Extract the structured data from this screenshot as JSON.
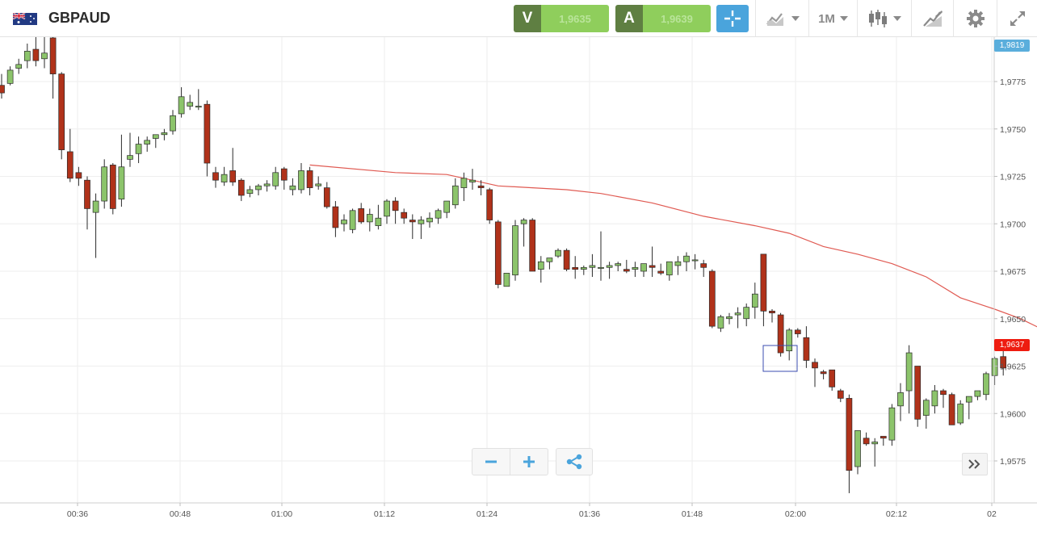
{
  "toolbar": {
    "symbol": "GBPAUD",
    "flag_icon": "gb-au-flag-icon",
    "sell": {
      "letter": "V",
      "price": "1,9635"
    },
    "buy": {
      "letter": "A",
      "price": "1,9639"
    },
    "timeframe": "1M",
    "icons": [
      "crosshair-icon",
      "chart-type-icon",
      "candlestick-icon",
      "drawing-icon",
      "gear-icon",
      "fullscreen-icon"
    ]
  },
  "chart": {
    "price_axis": [
      "1,9775",
      "1,9750",
      "1,9725",
      "1,9700",
      "1,9675",
      "1,9650",
      "1,9625",
      "1,9600",
      "1,9575"
    ],
    "time_axis": [
      "00:36",
      "00:48",
      "01:00",
      "01:12",
      "01:24",
      "01:36",
      "01:48",
      "02:00",
      "02:12",
      "02"
    ],
    "high_tag": "1,9819",
    "current_tag": "1,9637",
    "up_color": "#8cc46b",
    "down_color": "#b0321a",
    "ma_color": "#e05a52"
  },
  "chart_data": {
    "type": "candlestick",
    "symbol": "GBPAUD",
    "interval": "1M",
    "ylim": [
      1.9555,
      1.9825
    ],
    "grid": true,
    "candles": [
      [
        1.9773,
        1.9779,
        1.9766,
        1.9769
      ],
      [
        1.9774,
        1.9783,
        1.9773,
        1.9781
      ],
      [
        1.9782,
        1.9787,
        1.9779,
        1.9784
      ],
      [
        1.9786,
        1.9795,
        1.9782,
        1.9791
      ],
      [
        1.9792,
        1.9801,
        1.9783,
        1.9786
      ],
      [
        1.9787,
        1.98,
        1.9782,
        1.979
      ],
      [
        1.9798,
        1.98,
        1.9766,
        1.9779
      ],
      [
        1.9779,
        1.978,
        1.9734,
        1.9739
      ],
      [
        1.9738,
        1.975,
        1.9722,
        1.9724
      ],
      [
        1.9727,
        1.973,
        1.972,
        1.9724
      ],
      [
        1.9723,
        1.9725,
        1.9697,
        1.9708
      ],
      [
        1.9706,
        1.9716,
        1.9682,
        1.9712
      ],
      [
        1.9712,
        1.9734,
        1.9708,
        1.973
      ],
      [
        1.9731,
        1.9732,
        1.9705,
        1.9708
      ],
      [
        1.9713,
        1.9747,
        1.9709,
        1.973
      ],
      [
        1.9734,
        1.9748,
        1.973,
        1.9736
      ],
      [
        1.9737,
        1.9746,
        1.9732,
        1.9742
      ],
      [
        1.9742,
        1.9746,
        1.9738,
        1.9744
      ],
      [
        1.9745,
        1.9747,
        1.974,
        1.9747
      ],
      [
        1.9747,
        1.975,
        1.9744,
        1.9748
      ],
      [
        1.9749,
        1.976,
        1.9747,
        1.9757
      ],
      [
        1.9758,
        1.9772,
        1.9756,
        1.9767
      ],
      [
        1.9762,
        1.9768,
        1.976,
        1.9764
      ],
      [
        1.9762,
        1.9771,
        1.976,
        1.9762
      ],
      [
        1.9763,
        1.9765,
        1.9725,
        1.9732
      ],
      [
        1.9727,
        1.973,
        1.9719,
        1.9723
      ],
      [
        1.9722,
        1.973,
        1.972,
        1.9726
      ],
      [
        1.9728,
        1.974,
        1.972,
        1.9722
      ],
      [
        1.9723,
        1.9724,
        1.9712,
        1.9715
      ],
      [
        1.9716,
        1.972,
        1.9714,
        1.9718
      ],
      [
        1.9718,
        1.9721,
        1.9715,
        1.972
      ],
      [
        1.972,
        1.9723,
        1.9717,
        1.9721
      ],
      [
        1.972,
        1.973,
        1.9718,
        1.9727
      ],
      [
        1.9729,
        1.973,
        1.9718,
        1.9723
      ],
      [
        1.9718,
        1.9724,
        1.9715,
        1.972
      ],
      [
        1.9718,
        1.9732,
        1.9716,
        1.9728
      ],
      [
        1.9728,
        1.973,
        1.9715,
        1.9719
      ],
      [
        1.972,
        1.9725,
        1.9718,
        1.9721
      ],
      [
        1.9719,
        1.9722,
        1.9708,
        1.9709
      ],
      [
        1.9709,
        1.9712,
        1.9693,
        1.9698
      ],
      [
        1.97,
        1.9705,
        1.9696,
        1.9702
      ],
      [
        1.9697,
        1.9708,
        1.9695,
        1.9707
      ],
      [
        1.9708,
        1.9711,
        1.97,
        1.9701
      ],
      [
        1.9701,
        1.9708,
        1.9696,
        1.9705
      ],
      [
        1.9699,
        1.971,
        1.9697,
        1.9703
      ],
      [
        1.9704,
        1.9713,
        1.97,
        1.9712
      ],
      [
        1.9712,
        1.9714,
        1.97,
        1.9707
      ],
      [
        1.9706,
        1.9708,
        1.97,
        1.9703
      ],
      [
        1.9702,
        1.9705,
        1.9692,
        1.9701
      ],
      [
        1.97,
        1.9704,
        1.9692,
        1.9702
      ],
      [
        1.9701,
        1.9706,
        1.9698,
        1.9703
      ],
      [
        1.9703,
        1.9708,
        1.97,
        1.9707
      ],
      [
        1.9706,
        1.9712,
        1.9703,
        1.9712
      ],
      [
        1.971,
        1.9724,
        1.9708,
        1.972
      ],
      [
        1.9719,
        1.9727,
        1.9712,
        1.9724
      ],
      [
        1.9722,
        1.9729,
        1.9718,
        1.9723
      ],
      [
        1.972,
        1.9723,
        1.9715,
        1.9719
      ],
      [
        1.9718,
        1.9719,
        1.97,
        1.9702
      ],
      [
        1.9701,
        1.9702,
        1.9666,
        1.9668
      ],
      [
        1.9667,
        1.9674,
        1.9667,
        1.9674
      ],
      [
        1.9673,
        1.9702,
        1.967,
        1.9699
      ],
      [
        1.97,
        1.9703,
        1.9688,
        1.9702
      ],
      [
        1.9702,
        1.9703,
        1.9675,
        1.9675
      ],
      [
        1.9676,
        1.9683,
        1.9669,
        1.968
      ],
      [
        1.968,
        1.9682,
        1.9676,
        1.9682
      ],
      [
        1.9683,
        1.9687,
        1.9682,
        1.9686
      ],
      [
        1.9686,
        1.9687,
        1.9675,
        1.9676
      ],
      [
        1.9677,
        1.9683,
        1.9671,
        1.9676
      ],
      [
        1.9676,
        1.9678,
        1.9673,
        1.9677
      ],
      [
        1.9677,
        1.9684,
        1.9672,
        1.9678
      ],
      [
        1.9677,
        1.9696,
        1.967,
        1.9677
      ],
      [
        1.9677,
        1.968,
        1.9671,
        1.9678
      ],
      [
        1.9678,
        1.968,
        1.9675,
        1.9679
      ],
      [
        1.9676,
        1.9681,
        1.9674,
        1.9675
      ],
      [
        1.9676,
        1.968,
        1.9672,
        1.9677
      ],
      [
        1.9675,
        1.9679,
        1.9672,
        1.9679
      ],
      [
        1.9678,
        1.9688,
        1.9672,
        1.9677
      ],
      [
        1.9675,
        1.9679,
        1.9673,
        1.9674
      ],
      [
        1.9673,
        1.968,
        1.967,
        1.968
      ],
      [
        1.9678,
        1.9683,
        1.9673,
        1.968
      ],
      [
        1.968,
        1.9685,
        1.9675,
        1.9683
      ],
      [
        1.9681,
        1.9684,
        1.9676,
        1.9681
      ],
      [
        1.9679,
        1.9681,
        1.9672,
        1.9677
      ],
      [
        1.9675,
        1.9676,
        1.9645,
        1.9646
      ],
      [
        1.9645,
        1.9652,
        1.9643,
        1.9651
      ],
      [
        1.965,
        1.9653,
        1.9647,
        1.9651
      ],
      [
        1.9652,
        1.9656,
        1.9645,
        1.9653
      ],
      [
        1.965,
        1.9658,
        1.9646,
        1.9656
      ],
      [
        1.9656,
        1.9669,
        1.965,
        1.9663
      ],
      [
        1.9684,
        1.9684,
        1.9646,
        1.9654
      ],
      [
        1.9654,
        1.9655,
        1.9648,
        1.9653
      ],
      [
        1.9652,
        1.9653,
        1.963,
        1.9632
      ],
      [
        1.9633,
        1.9645,
        1.9628,
        1.9644
      ],
      [
        1.9644,
        1.9645,
        1.964,
        1.9642
      ],
      [
        1.964,
        1.9646,
        1.9624,
        1.9628
      ],
      [
        1.9627,
        1.9629,
        1.9614,
        1.9624
      ],
      [
        1.9622,
        1.9623,
        1.9618,
        1.9621
      ],
      [
        1.9623,
        1.9623,
        1.9612,
        1.9614
      ],
      [
        1.9612,
        1.9613,
        1.9606,
        1.9608
      ],
      [
        1.9608,
        1.961,
        1.9558,
        1.957
      ],
      [
        1.9572,
        1.9591,
        1.9568,
        1.9591
      ],
      [
        1.9587,
        1.959,
        1.9583,
        1.9584
      ],
      [
        1.9584,
        1.9587,
        1.9572,
        1.9585
      ],
      [
        1.9588,
        1.9588,
        1.9583,
        1.9587
      ],
      [
        1.9586,
        1.9605,
        1.9583,
        1.9603
      ],
      [
        1.9604,
        1.9616,
        1.9596,
        1.9611
      ],
      [
        1.9612,
        1.9636,
        1.96,
        1.9632
      ],
      [
        1.9625,
        1.9625,
        1.9593,
        1.9597
      ],
      [
        1.9599,
        1.9608,
        1.9592,
        1.9607
      ],
      [
        1.9604,
        1.9615,
        1.96,
        1.9612
      ],
      [
        1.9612,
        1.9613,
        1.9603,
        1.961
      ],
      [
        1.961,
        1.9611,
        1.9594,
        1.9594
      ],
      [
        1.9595,
        1.9607,
        1.9594,
        1.9605
      ],
      [
        1.9606,
        1.9608,
        1.9597,
        1.9609
      ],
      [
        1.9609,
        1.9611,
        1.9607,
        1.9612
      ],
      [
        1.961,
        1.9622,
        1.9607,
        1.9621
      ],
      [
        1.962,
        1.963,
        1.9615,
        1.9629
      ],
      [
        1.963,
        1.9633,
        1.962,
        1.9624
      ]
    ],
    "moving_average": [
      [
        36,
        1.9731
      ],
      [
        46,
        1.9727
      ],
      [
        52,
        1.9726
      ],
      [
        58,
        1.972
      ],
      [
        62,
        1.9719
      ],
      [
        66,
        1.9718
      ],
      [
        70,
        1.9716
      ],
      [
        76,
        1.9711
      ],
      [
        82,
        1.9704
      ],
      [
        88,
        1.9699
      ],
      [
        92,
        1.9695
      ],
      [
        96,
        1.9688
      ],
      [
        100,
        1.9684
      ],
      [
        104,
        1.9679
      ],
      [
        108,
        1.9672
      ],
      [
        112,
        1.9661
      ],
      [
        116,
        1.9655
      ],
      [
        119,
        1.965
      ],
      [
        124,
        1.9639
      ],
      [
        126,
        1.9637
      ]
    ]
  }
}
